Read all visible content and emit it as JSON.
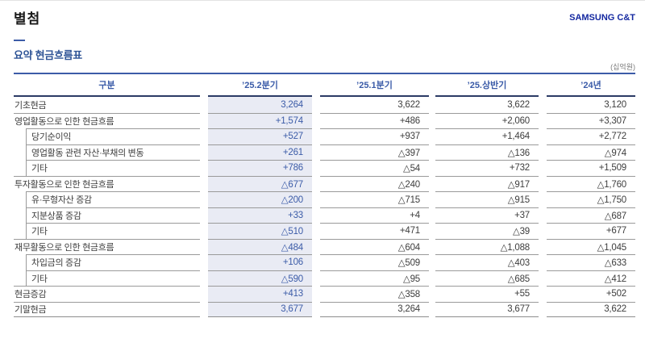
{
  "page": {
    "title": "별첨",
    "brand": "SAMSUNG C&T",
    "section_title": "요약 현금흐름표",
    "unit_note": "(십억원)"
  },
  "colors": {
    "brand_blue": "#1428a0",
    "header_blue": "#3a5ba8",
    "table_top_border": "#3c5ca8",
    "header_underline": "#2c3b66",
    "highlight_bg": "#e9ebf4",
    "highlight_text": "#3c5ca8",
    "row_line": "#9a9a9a",
    "text": "#3d3d3d"
  },
  "table": {
    "columns": [
      "구분",
      "’25.2분기",
      "’25.1분기",
      "’25.상반기",
      "’24년"
    ],
    "highlight_column_index": 1,
    "rows": [
      {
        "label": "기초현금",
        "indent": 0,
        "values": [
          "3,264",
          "3,622",
          "3,622",
          "3,120"
        ]
      },
      {
        "label": "영업활동으로 인한 현금흐름",
        "indent": 0,
        "values": [
          "+1,574",
          "+486",
          "+2,060",
          "+3,307"
        ]
      },
      {
        "label": "당기순이익",
        "indent": 1,
        "values": [
          "+527",
          "+937",
          "+1,464",
          "+2,772"
        ]
      },
      {
        "label": "영업활동 관련 자산·부채의 변동",
        "indent": 1,
        "values": [
          "+261",
          "△397",
          "△136",
          "△974"
        ]
      },
      {
        "label": "기타",
        "indent": 1,
        "values": [
          "+786",
          "△54",
          "+732",
          "+1,509"
        ]
      },
      {
        "label": "투자활동으로 인한 현금흐름",
        "indent": 0,
        "values": [
          "△677",
          "△240",
          "△917",
          "△1,760"
        ]
      },
      {
        "label": "유·무형자산 증감",
        "indent": 1,
        "values": [
          "△200",
          "△715",
          "△915",
          "△1,750"
        ]
      },
      {
        "label": "지분상품 증감",
        "indent": 1,
        "values": [
          "+33",
          "+4",
          "+37",
          "△687"
        ]
      },
      {
        "label": "기타",
        "indent": 1,
        "values": [
          "△510",
          "+471",
          "△39",
          "+677"
        ]
      },
      {
        "label": "재무활동으로 인한 현금흐름",
        "indent": 0,
        "values": [
          "△484",
          "△604",
          "△1,088",
          "△1,045"
        ]
      },
      {
        "label": "차입금의 증감",
        "indent": 1,
        "values": [
          "+106",
          "△509",
          "△403",
          "△633"
        ]
      },
      {
        "label": "기타",
        "indent": 1,
        "values": [
          "△590",
          "△95",
          "△685",
          "△412"
        ]
      },
      {
        "label": "현금증감",
        "indent": 0,
        "values": [
          "+413",
          "△358",
          "+55",
          "+502"
        ]
      },
      {
        "label": "기말현금",
        "indent": 0,
        "values": [
          "3,677",
          "3,264",
          "3,677",
          "3,622"
        ]
      }
    ]
  }
}
